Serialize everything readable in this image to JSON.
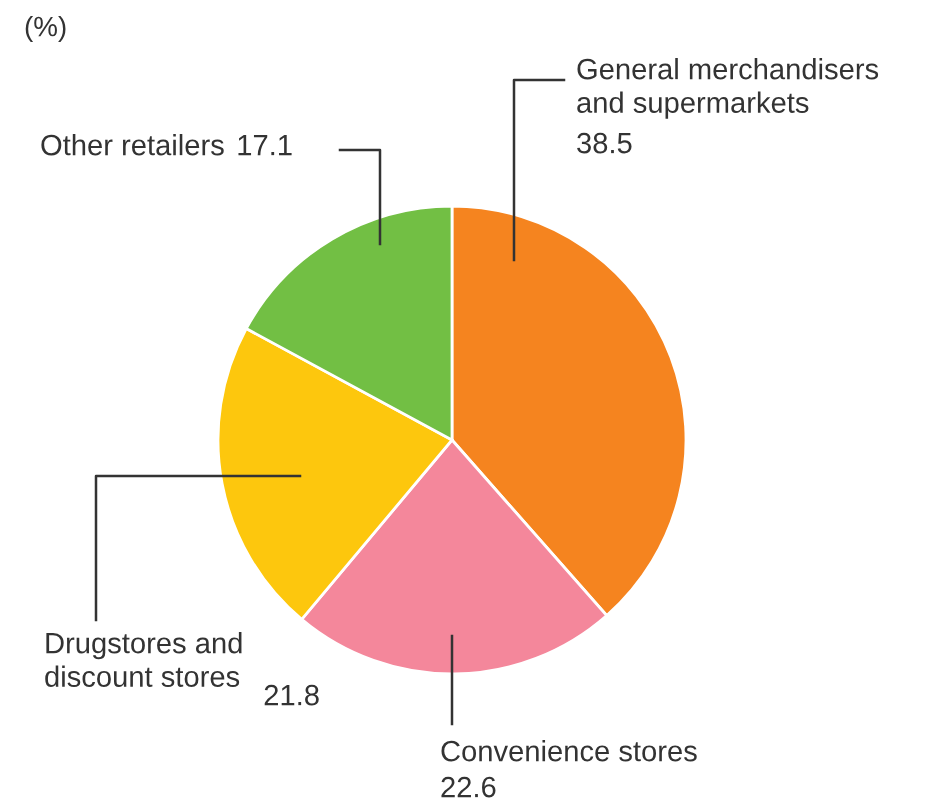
{
  "chart_data": {
    "type": "pie",
    "title": "(%)",
    "categories": [
      "General merchandisers\nand supermarkets",
      "Convenience stores",
      "Drugstores and\ndiscount stores",
      "Other retailers"
    ],
    "values": [
      38.5,
      22.6,
      21.8,
      17.1
    ],
    "colors": [
      "#f5841f",
      "#f4879b",
      "#fdc70d",
      "#72bf44"
    ],
    "data_labels": true
  }
}
